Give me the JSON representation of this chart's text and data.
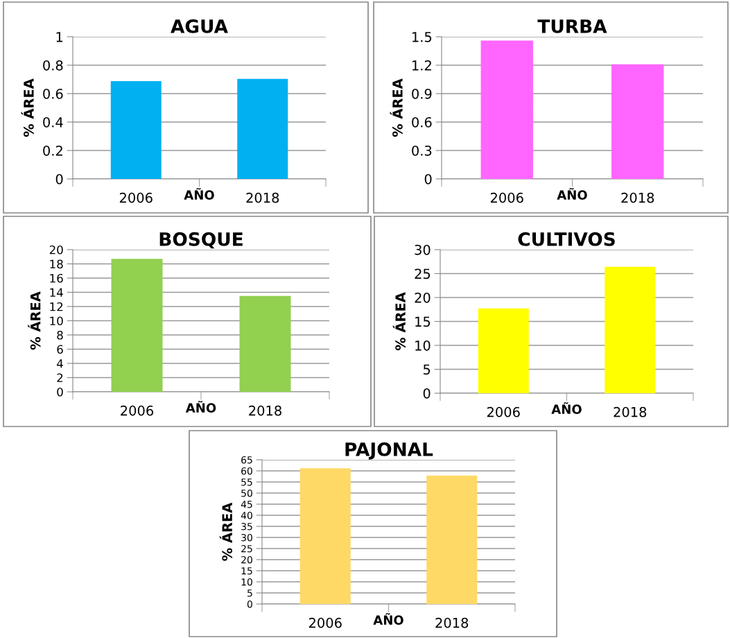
{
  "chart_data": [
    {
      "type": "bar",
      "title": "AGUA",
      "xlabel": "AÑO",
      "ylabel": "% ÁREA",
      "categories": [
        "2006",
        "2018"
      ],
      "values": [
        0.688,
        0.704
      ],
      "color": "#00b0f0",
      "ylim": [
        0,
        1
      ],
      "yticks": [
        0,
        0.2,
        0.4,
        0.6,
        0.8,
        1
      ],
      "grid": "y"
    },
    {
      "type": "bar",
      "title": "TURBA",
      "xlabel": "AÑO",
      "ylabel": "% ÁREA",
      "categories": [
        "2006",
        "2018"
      ],
      "values": [
        1.46,
        1.21
      ],
      "color": "#ff66ff",
      "ylim": [
        0,
        1.5
      ],
      "yticks": [
        0,
        0.3,
        0.6,
        0.9,
        1.2,
        1.5
      ],
      "grid": "y"
    },
    {
      "type": "bar",
      "title": "BOSQUE",
      "xlabel": "AÑO",
      "ylabel": "% ÁREA",
      "categories": [
        "2006",
        "2018"
      ],
      "values": [
        18.7,
        13.5
      ],
      "color": "#92d050",
      "ylim": [
        0,
        20
      ],
      "yticks": [
        0,
        2,
        4,
        6,
        8,
        10,
        12,
        14,
        16,
        18,
        20
      ],
      "grid": "y"
    },
    {
      "type": "bar",
      "title": "CULTIVOS",
      "xlabel": "AÑO",
      "ylabel": "% ÁREA",
      "categories": [
        "2006",
        "2018"
      ],
      "values": [
        17.7,
        26.4
      ],
      "color": "#ffff00",
      "ylim": [
        0,
        30
      ],
      "yticks": [
        0,
        5,
        10,
        15,
        20,
        25,
        30
      ],
      "grid": "y"
    },
    {
      "type": "bar",
      "title": "PAJONAL",
      "xlabel": "AÑO",
      "ylabel": "% ÁREA",
      "categories": [
        "2006",
        "2018"
      ],
      "values": [
        61.2,
        57.9
      ],
      "color": "#ffd966",
      "ylim": [
        0,
        65
      ],
      "yticks": [
        0,
        5,
        10,
        15,
        20,
        25,
        30,
        35,
        40,
        45,
        50,
        55,
        60,
        65
      ],
      "grid": "y"
    }
  ]
}
